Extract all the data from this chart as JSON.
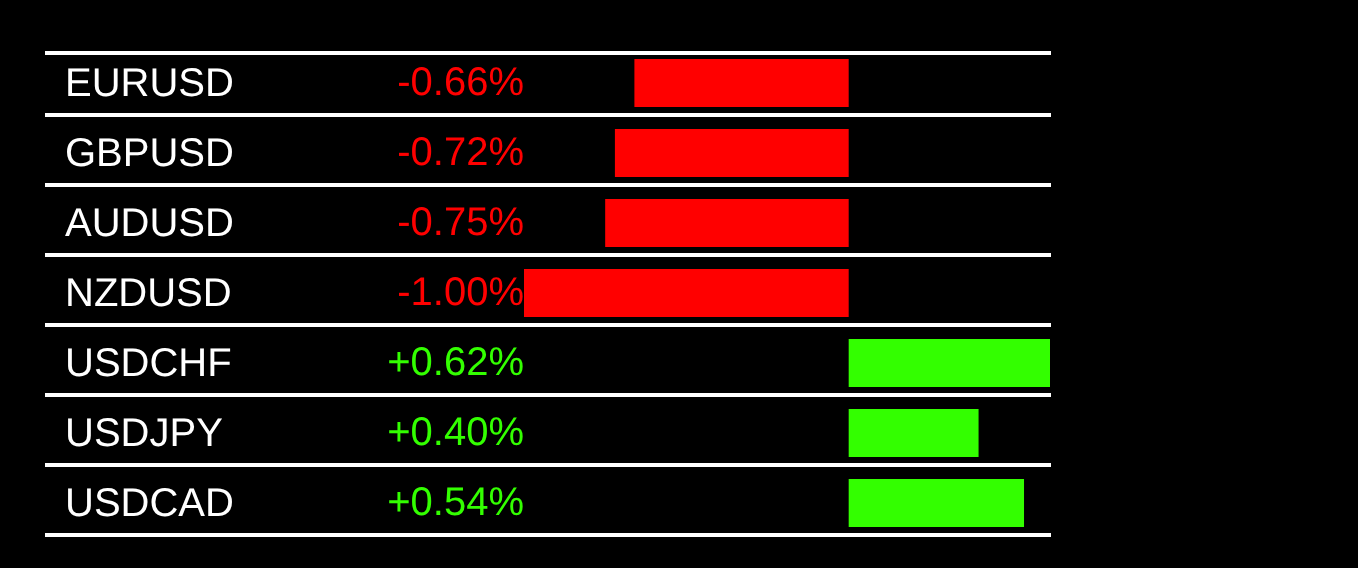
{
  "chart_data": {
    "type": "bar",
    "orientation": "horizontal",
    "categories": [
      "EURUSD",
      "GBPUSD",
      "AUDUSD",
      "NZDUSD",
      "USDCHF",
      "USDJPY",
      "USDCAD"
    ],
    "values": [
      -0.66,
      -0.72,
      -0.75,
      -1.0,
      0.62,
      0.4,
      0.54
    ],
    "colors": [
      "#ff0000",
      "#ff0000",
      "#ff0000",
      "#ff0000",
      "#33ff00",
      "#33ff00",
      "#33ff00"
    ],
    "value_labels": [
      "-0.66%",
      "-0.72%",
      "-0.75%",
      "-1.00%",
      "+0.62%",
      "+0.40%",
      "+0.54%"
    ],
    "grid": "y",
    "legend": false
  }
}
